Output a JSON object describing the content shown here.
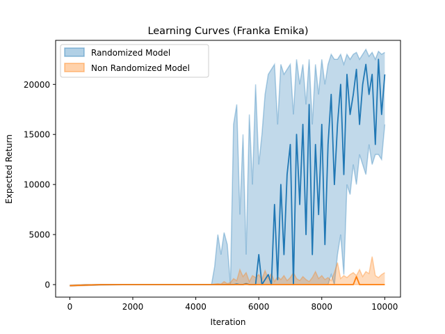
{
  "chart_data": {
    "type": "line",
    "title": "Learning Curves (Franka Emika)",
    "xlabel": "Iteration",
    "ylabel": "Expected Return",
    "xlim": [
      -450,
      10500
    ],
    "ylim": [
      -1250,
      24400
    ],
    "xticks": [
      0,
      2000,
      4000,
      6000,
      8000,
      10000
    ],
    "xtick_labels": [
      "0",
      "2000",
      "4000",
      "6000",
      "8000",
      "10000"
    ],
    "yticks": [
      0,
      5000,
      10000,
      15000,
      20000
    ],
    "ytick_labels": [
      "0",
      "5000",
      "10000",
      "15000",
      "20000"
    ],
    "grid": false,
    "legend_position": "upper-left",
    "series": [
      {
        "name": "Randomized Model",
        "color": "#1f77b4",
        "x": [
          0,
          500,
          1000,
          2000,
          3000,
          4000,
          4500,
          4600,
          4700,
          4800,
          4900,
          5000,
          5100,
          5200,
          5300,
          5400,
          5500,
          5600,
          5700,
          5800,
          5900,
          6000,
          6100,
          6200,
          6300,
          6400,
          6500,
          6600,
          6700,
          6800,
          6900,
          7000,
          7100,
          7200,
          7300,
          7400,
          7500,
          7600,
          7700,
          7800,
          7900,
          8000,
          8100,
          8200,
          8300,
          8400,
          8500,
          8600,
          8700,
          8800,
          8900,
          9000,
          9100,
          9200,
          9300,
          9400,
          9500,
          9600,
          9700,
          9800,
          9900,
          10000
        ],
        "mean": [
          -100,
          -50,
          0,
          0,
          0,
          0,
          0,
          0,
          0,
          0,
          0,
          0,
          0,
          0,
          50,
          0,
          0,
          100,
          0,
          0,
          0,
          3000,
          0,
          500,
          1000,
          0,
          8000,
          500,
          10000,
          3000,
          11000,
          14000,
          0,
          15000,
          8000,
          16000,
          5000,
          18000,
          3000,
          14000,
          7000,
          16000,
          4000,
          14000,
          19000,
          10000,
          16000,
          20000,
          11000,
          21000,
          17000,
          19000,
          21500,
          16000,
          20000,
          22000,
          19000,
          21000,
          14000,
          22500,
          17000,
          21000
        ],
        "upper": [
          -50,
          0,
          0,
          0,
          0,
          0,
          0,
          1800,
          5000,
          3000,
          5200,
          4000,
          0,
          16000,
          18000,
          7000,
          15000,
          3000,
          17000,
          10000,
          20000,
          12000,
          15000,
          19000,
          21000,
          21500,
          22000,
          16000,
          22000,
          21000,
          21500,
          22000,
          17000,
          22500,
          20000,
          22000,
          18000,
          22500,
          16000,
          22000,
          19000,
          22500,
          20000,
          22000,
          23000,
          22500,
          22500,
          23000,
          22000,
          23000,
          22500,
          23000,
          23200,
          22500,
          23000,
          23500,
          22800,
          23200,
          22500,
          23300,
          23000,
          23200
        ],
        "lower": [
          -100,
          -80,
          -50,
          0,
          0,
          0,
          0,
          0,
          0,
          0,
          0,
          0,
          0,
          0,
          0,
          0,
          0,
          0,
          0,
          0,
          0,
          0,
          0,
          0,
          0,
          0,
          0,
          0,
          0,
          0,
          0,
          0,
          0,
          0,
          0,
          0,
          0,
          0,
          0,
          0,
          0,
          0,
          0,
          0,
          1000,
          0,
          3000,
          5000,
          1000,
          10000,
          9000,
          12000,
          10000,
          13000,
          12000,
          11000,
          14000,
          12000,
          13000,
          13000,
          12500,
          16000
        ]
      },
      {
        "name": "Non Randomized Model",
        "color": "#ff7f0e",
        "x": [
          0,
          500,
          1000,
          2000,
          3000,
          4000,
          4500,
          4600,
          4700,
          4800,
          4900,
          5000,
          5100,
          5200,
          5300,
          5400,
          5500,
          5600,
          5700,
          5800,
          5900,
          6000,
          6100,
          6200,
          6300,
          6400,
          6500,
          6600,
          6700,
          6800,
          6900,
          7000,
          7100,
          7200,
          7300,
          7400,
          7500,
          7600,
          7700,
          7800,
          7900,
          8000,
          8100,
          8200,
          8300,
          8400,
          8500,
          8600,
          8700,
          8800,
          8900,
          9000,
          9100,
          9200,
          9300,
          9400,
          9500,
          9600,
          9700,
          9800,
          9900,
          10000
        ],
        "mean": [
          -100,
          -50,
          0,
          0,
          0,
          0,
          0,
          0,
          0,
          0,
          0,
          0,
          0,
          0,
          0,
          0,
          0,
          50,
          0,
          0,
          0,
          0,
          0,
          0,
          0,
          0,
          0,
          0,
          0,
          0,
          0,
          0,
          0,
          0,
          0,
          0,
          0,
          0,
          0,
          0,
          0,
          0,
          0,
          0,
          0,
          0,
          0,
          0,
          0,
          0,
          0,
          0,
          800,
          0,
          0,
          0,
          0,
          0,
          0,
          0,
          0,
          0
        ],
        "upper": [
          -50,
          0,
          0,
          0,
          0,
          0,
          0,
          50,
          100,
          50,
          300,
          100,
          200,
          600,
          400,
          1500,
          800,
          1200,
          300,
          900,
          700,
          1000,
          500,
          1400,
          600,
          1100,
          300,
          800,
          500,
          900,
          400,
          700,
          1200,
          600,
          400,
          800,
          500,
          300,
          700,
          1300,
          600,
          900,
          500,
          700,
          400,
          1200,
          2200,
          600,
          900,
          700,
          1000,
          1200,
          900,
          1500,
          800,
          1300,
          1100,
          2800,
          900,
          700,
          1000,
          1200
        ],
        "lower": [
          -150,
          -100,
          -50,
          0,
          0,
          0,
          0,
          0,
          0,
          0,
          0,
          0,
          0,
          0,
          0,
          0,
          0,
          0,
          0,
          0,
          0,
          0,
          0,
          0,
          0,
          0,
          0,
          0,
          0,
          0,
          0,
          0,
          0,
          0,
          0,
          0,
          0,
          0,
          0,
          0,
          0,
          0,
          0,
          0,
          0,
          0,
          0,
          0,
          0,
          0,
          0,
          0,
          0,
          0,
          0,
          0,
          0,
          0,
          0,
          0,
          0,
          0
        ]
      }
    ]
  }
}
